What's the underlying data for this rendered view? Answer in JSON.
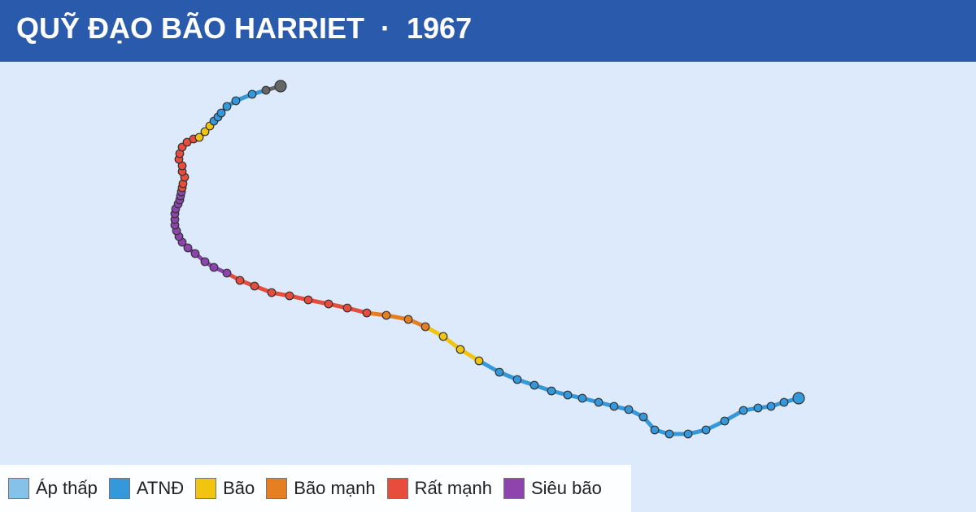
{
  "header": {
    "title": "QUỸ ĐẠO BÃO HARRIET  ·  1967"
  },
  "legend": [
    {
      "label": "Áp thấp",
      "color": "#85c1e9"
    },
    {
      "label": "ATNĐ",
      "color": "#3498db"
    },
    {
      "label": "Bão",
      "color": "#f1c40f"
    },
    {
      "label": "Bão mạnh",
      "color": "#e67e22"
    },
    {
      "label": "Rất mạnh",
      "color": "#e74c3c"
    },
    {
      "label": "Siêu bão",
      "color": "#8e44ad"
    }
  ]
}
